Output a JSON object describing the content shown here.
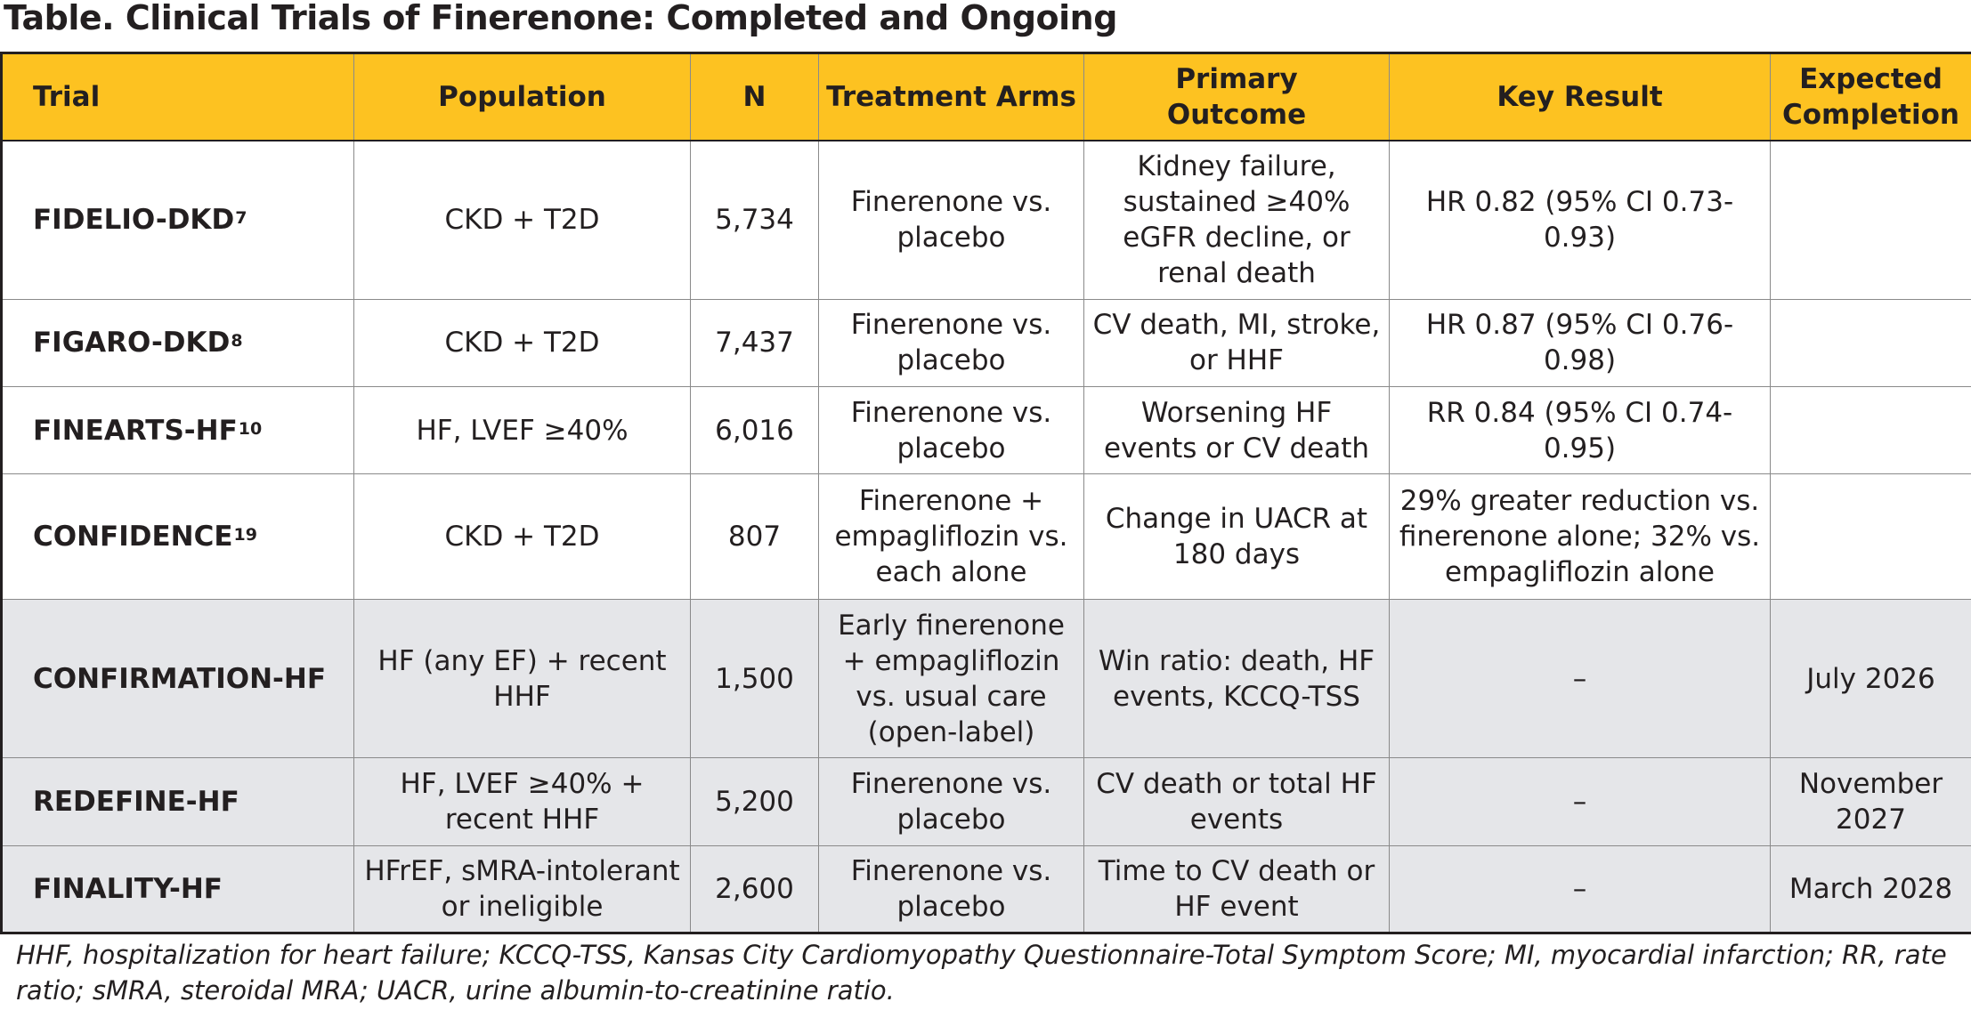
{
  "title": "Table. Clinical Trials of Finerenone: Completed and Ongoing",
  "headers": {
    "trial": "Trial",
    "population": "Population",
    "n": "N",
    "arms": "Treatment Arms",
    "outcome": "Primary Outcome",
    "result": "Key Result",
    "completion": "Expected Completion"
  },
  "rows": [
    {
      "trial": "FIDELIO-DKD",
      "ref": "7",
      "population": "CKD + T2D",
      "n": "5,734",
      "arms": "Finerenone vs. placebo",
      "outcome": "Kidney failure, sustained ≥40% eGFR decline, or renal death",
      "result": "HR 0.82 (95% CI 0.73-0.93)",
      "completion": ""
    },
    {
      "trial": "FIGARO-DKD",
      "ref": "8",
      "population": "CKD + T2D",
      "n": "7,437",
      "arms": "Finerenone vs. placebo",
      "outcome": "CV death, MI, stroke, or HHF",
      "result": "HR 0.87 (95% CI 0.76-0.98)",
      "completion": ""
    },
    {
      "trial": "FINEARTS-HF",
      "ref": "10",
      "population": "HF, LVEF ≥40%",
      "n": "6,016",
      "arms": "Finerenone vs. placebo",
      "outcome": "Worsening HF events or CV death",
      "result": "RR 0.84 (95% CI 0.74-0.95)",
      "completion": ""
    },
    {
      "trial": "CONFIDENCE",
      "ref": "19",
      "population": "CKD + T2D",
      "n": "807",
      "arms": "Finerenone + empagliflozin vs. each alone",
      "outcome": "Change in UACR at 180 days",
      "result": "29% greater reduction vs. finerenone alone; 32% vs. empagliflozin alone",
      "completion": ""
    },
    {
      "trial": "CONFIRMATION-HF",
      "ref": "",
      "population": "HF (any EF) + recent HHF",
      "n": "1,500",
      "arms": "Early finerenone + empagliflozin vs. usual care (open-label)",
      "outcome": "Win ratio: death, HF events, KCCQ-TSS",
      "result": "–",
      "completion": "July 2026"
    },
    {
      "trial": "REDEFINE-HF",
      "ref": "",
      "population": "HF, LVEF ≥40% + recent HHF",
      "n": "5,200",
      "arms": "Finerenone vs. placebo",
      "outcome": "CV death or total HF events",
      "result": "–",
      "completion": "November 2027"
    },
    {
      "trial": "FINALITY-HF",
      "ref": "",
      "population": "HFrEF, sMRA-intolerant or ineligible",
      "n": "2,600",
      "arms": "Finerenone vs. placebo",
      "outcome": "Time to CV death or HF event",
      "result": "–",
      "completion": "March 2028"
    }
  ],
  "footnote": "HHF, hospitalization for heart failure; KCCQ-TSS, Kansas City Cardiomyopathy Questionnaire-Total Symptom Score; MI, myocardial infarction; RR, rate ratio; sMRA, steroidal MRA; UACR, urine albumin-to-creatinine ratio.",
  "colors": {
    "header_bg": "#fdc221",
    "ongoing_row_bg": "#e5e6e9",
    "text": "#231f20"
  }
}
